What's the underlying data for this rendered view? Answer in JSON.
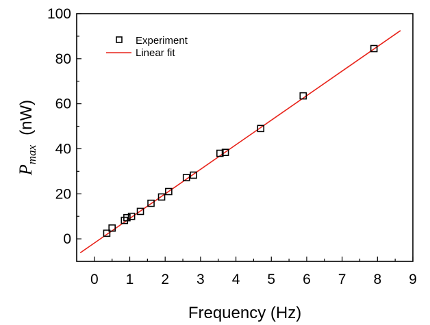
{
  "chart_data": {
    "type": "scatter",
    "xlabel": "Frequency (Hz)",
    "ylabel_main": "P",
    "ylabel_sub": "max",
    "ylabel_unit": "(nW)",
    "xlim": [
      -0.5,
      9
    ],
    "ylim": [
      -10,
      100
    ],
    "xticks": [
      0,
      1,
      2,
      3,
      4,
      5,
      6,
      7,
      8,
      9
    ],
    "yticks": [
      0,
      20,
      40,
      60,
      80,
      100
    ],
    "grid": false,
    "legend_position": "top-left",
    "series": [
      {
        "name": "Experiment",
        "kind": "scatter",
        "marker": "open-square",
        "color": "#000000",
        "points": [
          [
            0.35,
            2.5
          ],
          [
            0.5,
            4.8
          ],
          [
            0.85,
            8.2
          ],
          [
            0.92,
            9.4
          ],
          [
            1.05,
            10.0
          ],
          [
            1.3,
            12.2
          ],
          [
            1.6,
            15.8
          ],
          [
            1.9,
            18.6
          ],
          [
            2.1,
            21.0
          ],
          [
            2.6,
            27.2
          ],
          [
            2.8,
            28.3
          ],
          [
            3.55,
            38.0
          ],
          [
            3.7,
            38.4
          ],
          [
            4.7,
            49.0
          ],
          [
            5.9,
            63.5
          ],
          [
            7.9,
            84.5
          ]
        ]
      },
      {
        "name": "Linear fit",
        "kind": "line",
        "color": "#e8231a",
        "points": [
          [
            -0.4,
            -6.2
          ],
          [
            8.65,
            92.5
          ]
        ]
      }
    ]
  }
}
